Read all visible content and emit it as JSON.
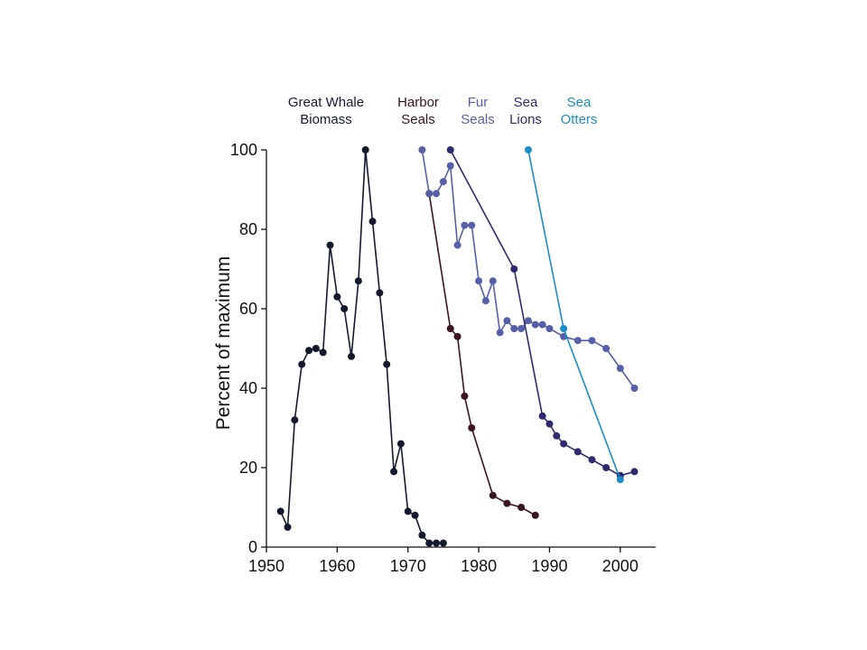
{
  "chart_data": {
    "type": "line",
    "title": "",
    "xlabel": "",
    "ylabel": "Percent of maximum",
    "xlim": [
      1950,
      2005
    ],
    "ylim": [
      0,
      100
    ],
    "x_ticks": [
      1950,
      1960,
      1970,
      1980,
      1990,
      2000
    ],
    "y_ticks": [
      0,
      20,
      40,
      60,
      80,
      100
    ],
    "legend_placement": "top, as labels above each series",
    "grid": false,
    "series": [
      {
        "name_lines": [
          "Great Whale",
          "Biomass"
        ],
        "color": "#141a2e",
        "x": [
          1952,
          1953,
          1954,
          1955,
          1956,
          1957,
          1958,
          1959,
          1960,
          1961,
          1962,
          1963,
          1964,
          1965,
          1966,
          1967,
          1968,
          1969,
          1970,
          1971,
          1972,
          1973,
          1974,
          1975
        ],
        "y": [
          9,
          5,
          32,
          46,
          49.5,
          50,
          49,
          76,
          63,
          60,
          48,
          67,
          100,
          82,
          64,
          46,
          19,
          26,
          9,
          8,
          3,
          1,
          1,
          1
        ]
      },
      {
        "name_lines": [
          "Harbor",
          "Seals"
        ],
        "color": "#3a1420",
        "x": [
          1973,
          1976,
          1977,
          1978,
          1979,
          1982,
          1984,
          1986,
          1988
        ],
        "y": [
          89,
          55,
          53,
          38,
          30,
          13,
          11,
          10,
          8
        ]
      },
      {
        "name_lines": [
          "Fur",
          "Seals"
        ],
        "color": "#5560a8",
        "x": [
          1972,
          1973,
          1974,
          1975,
          1976,
          1977,
          1978,
          1979,
          1980,
          1981,
          1982,
          1983,
          1984,
          1985,
          1986,
          1987,
          1988,
          1989,
          1990,
          1992,
          1994,
          1996,
          1998,
          2000,
          2002
        ],
        "y": [
          100,
          89,
          89,
          92,
          96,
          76,
          81,
          81,
          67,
          62,
          67,
          54,
          57,
          55,
          55,
          57,
          56,
          56,
          55,
          53,
          52,
          52,
          50,
          45,
          40
        ]
      },
      {
        "name_lines": [
          "Sea",
          "Lions"
        ],
        "color": "#2e2a6e",
        "x": [
          1976,
          1985,
          1989,
          1990,
          1991,
          1992,
          1994,
          1996,
          1998,
          2000,
          2002
        ],
        "y": [
          100,
          70,
          33,
          31,
          28,
          26,
          24,
          22,
          20,
          18,
          19
        ]
      },
      {
        "name_lines": [
          "Sea",
          "Otters"
        ],
        "color": "#1a8cc8",
        "x": [
          1987,
          1992,
          2000
        ],
        "y": [
          100,
          55,
          17
        ]
      }
    ]
  }
}
